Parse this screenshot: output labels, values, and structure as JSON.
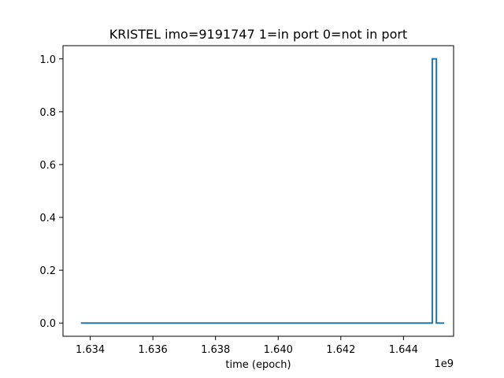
{
  "chart_data": {
    "type": "line",
    "title": "KRISTEL imo=9191747 1=in port 0=not in port",
    "xlabel": "time (epoch)",
    "ylabel": "",
    "x_offset_label": "1e9",
    "xlim": [
      1.63313,
      1.6456
    ],
    "ylim": [
      -0.05,
      1.05
    ],
    "x_ticks": [
      1.634,
      1.636,
      1.638,
      1.64,
      1.642,
      1.644
    ],
    "x_tick_labels": [
      "1.634",
      "1.636",
      "1.638",
      "1.640",
      "1.642",
      "1.644"
    ],
    "y_ticks": [
      0.0,
      0.2,
      0.4,
      0.6,
      0.8,
      1.0
    ],
    "y_tick_labels": [
      "0.0",
      "0.2",
      "0.4",
      "0.6",
      "0.8",
      "1.0"
    ],
    "grid": false,
    "series": [
      {
        "color": "#1f77b4",
        "step": true,
        "x": [
          1.6337,
          1.64492,
          1.64492,
          1.64505,
          1.64505,
          1.6453
        ],
        "y": [
          0,
          0,
          1,
          1,
          0,
          0
        ]
      }
    ]
  }
}
